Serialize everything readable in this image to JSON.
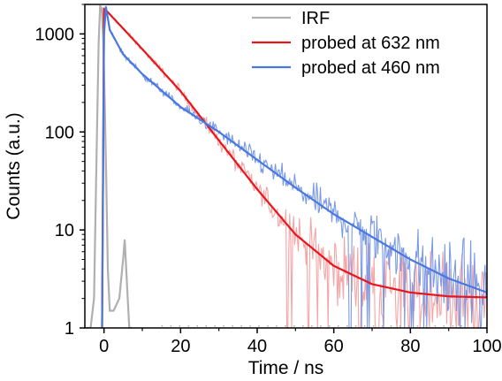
{
  "chart_data": {
    "type": "line",
    "title": "",
    "xlabel": "Time / ns",
    "ylabel": "Counts (a.u.)",
    "xlim": [
      -5,
      100
    ],
    "ylim": [
      1,
      2000
    ],
    "yscale": "log",
    "grid": false,
    "legend_position": "top-right",
    "x_ticks": [
      0,
      20,
      40,
      60,
      80,
      100
    ],
    "y_ticks": [
      1,
      10,
      100,
      1000
    ],
    "x_tick_labels": [
      "0",
      "20",
      "40",
      "60",
      "80",
      "100"
    ],
    "y_tick_labels": [
      "1",
      "10",
      "100",
      "1000"
    ],
    "series": [
      {
        "name": "IRF",
        "color": "#b0b0b0",
        "x": [
          -5,
          -3.5,
          -2.6,
          -2.2,
          -1.8,
          -1.4,
          -1.0,
          -0.6,
          -0.2,
          0.2,
          0.6,
          1.0,
          1.5,
          2.5,
          4.0,
          5.0,
          5.4,
          5.8,
          6.2,
          6.6,
          7.2
        ],
        "y": [
          1,
          1,
          2,
          15,
          120,
          800,
          1950,
          1800,
          900,
          200,
          30,
          4,
          1.5,
          1.5,
          2,
          5,
          8,
          4,
          2,
          1,
          1
        ]
      },
      {
        "name": "probed at 632 nm",
        "color": "#e8151c",
        "x": [
          -0.5,
          0,
          0.5,
          10,
          20,
          30,
          40,
          50,
          60,
          70,
          80,
          90,
          100
        ],
        "y": [
          1,
          1800,
          1750,
          700,
          260,
          82,
          26,
          9,
          4.3,
          2.8,
          2.3,
          2.1,
          2.05
        ]
      },
      {
        "name": "probed at 460 nm",
        "color": "#4a78e0",
        "x": [
          -0.5,
          0,
          0.5,
          1.5,
          5,
          10,
          20,
          30,
          40,
          50,
          60,
          70,
          80,
          90,
          100
        ],
        "y": [
          1,
          1000,
          1900,
          1100,
          620,
          390,
          180,
          100,
          52,
          27,
          14.5,
          8.5,
          5,
          3.2,
          2.3
        ]
      }
    ],
    "noisy_data": [
      {
        "series": "probed at 632 nm",
        "color": "#f6a5a5"
      },
      {
        "series": "probed at 460 nm",
        "color": "#7a9ae8"
      }
    ]
  }
}
